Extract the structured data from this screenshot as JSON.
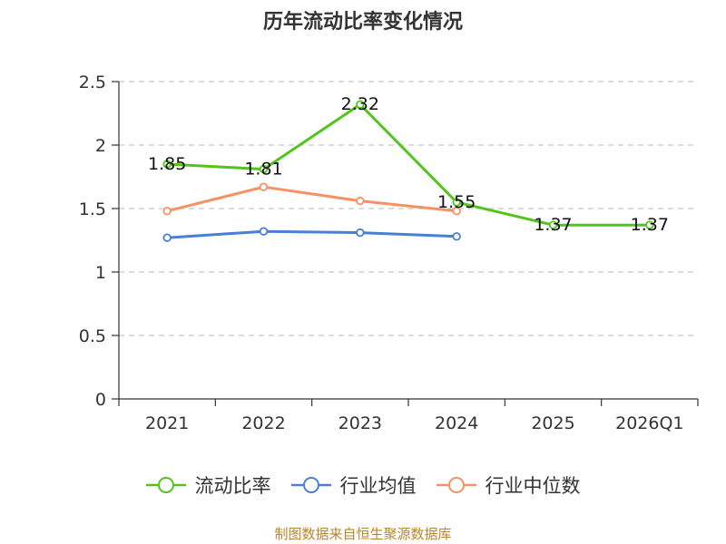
{
  "chart_data": {
    "type": "line",
    "title": "历年流动比率变化情况",
    "categories": [
      "2021",
      "2022",
      "2023",
      "2024",
      "2025",
      "2026Q1"
    ],
    "ylim": [
      0,
      2.5
    ],
    "yticks": [
      "0",
      "0.5",
      "1",
      "1.5",
      "2",
      "2.5"
    ],
    "xlabel": "",
    "ylabel": "",
    "grid": "horizontal dashed",
    "legend_position": "bottom",
    "series": [
      {
        "name": "流动比率",
        "color": "#52c41a",
        "values": [
          1.85,
          1.81,
          2.32,
          1.55,
          1.37,
          1.37
        ],
        "labels": [
          "1.85",
          "1.81",
          "2.32",
          "1.55",
          "1.37",
          "1.37"
        ]
      },
      {
        "name": "行业均值",
        "color": "#4a7fd6",
        "values": [
          1.27,
          1.32,
          1.31,
          1.28,
          null,
          null
        ]
      },
      {
        "name": "行业中位数",
        "color": "#f59264",
        "values": [
          1.48,
          1.67,
          1.56,
          1.48,
          null,
          null
        ]
      }
    ]
  },
  "footer": {
    "source": "制图数据来自恒生聚源数据库"
  }
}
